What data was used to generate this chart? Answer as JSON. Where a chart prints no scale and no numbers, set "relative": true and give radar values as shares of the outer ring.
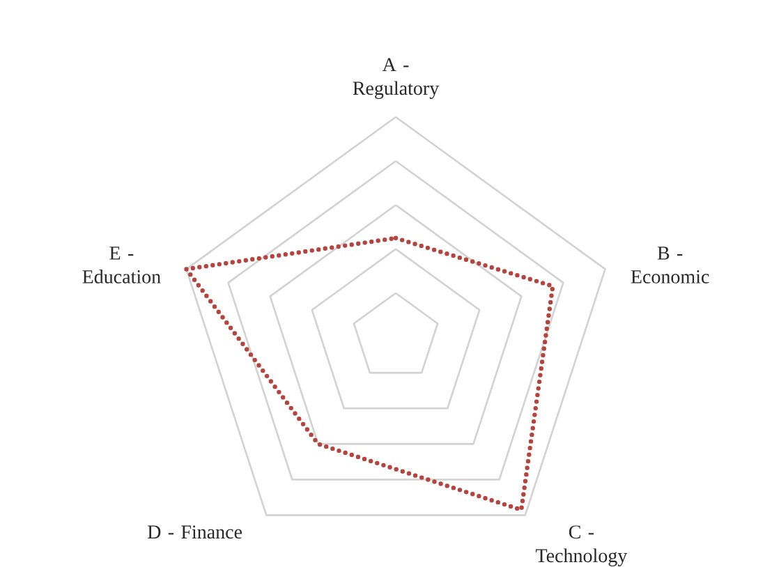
{
  "chart_data": {
    "type": "radar",
    "relative": true,
    "grid": true,
    "line_style": "dotted",
    "marker": "none",
    "categories": [
      "A - Regulatory",
      "B - Economic",
      "C - Technology",
      "D - Finance",
      "E - Education"
    ],
    "series": [
      {
        "color": "#b5443f",
        "values": [
          0.45,
          0.75,
          0.97,
          0.6,
          1.0
        ]
      }
    ]
  }
}
